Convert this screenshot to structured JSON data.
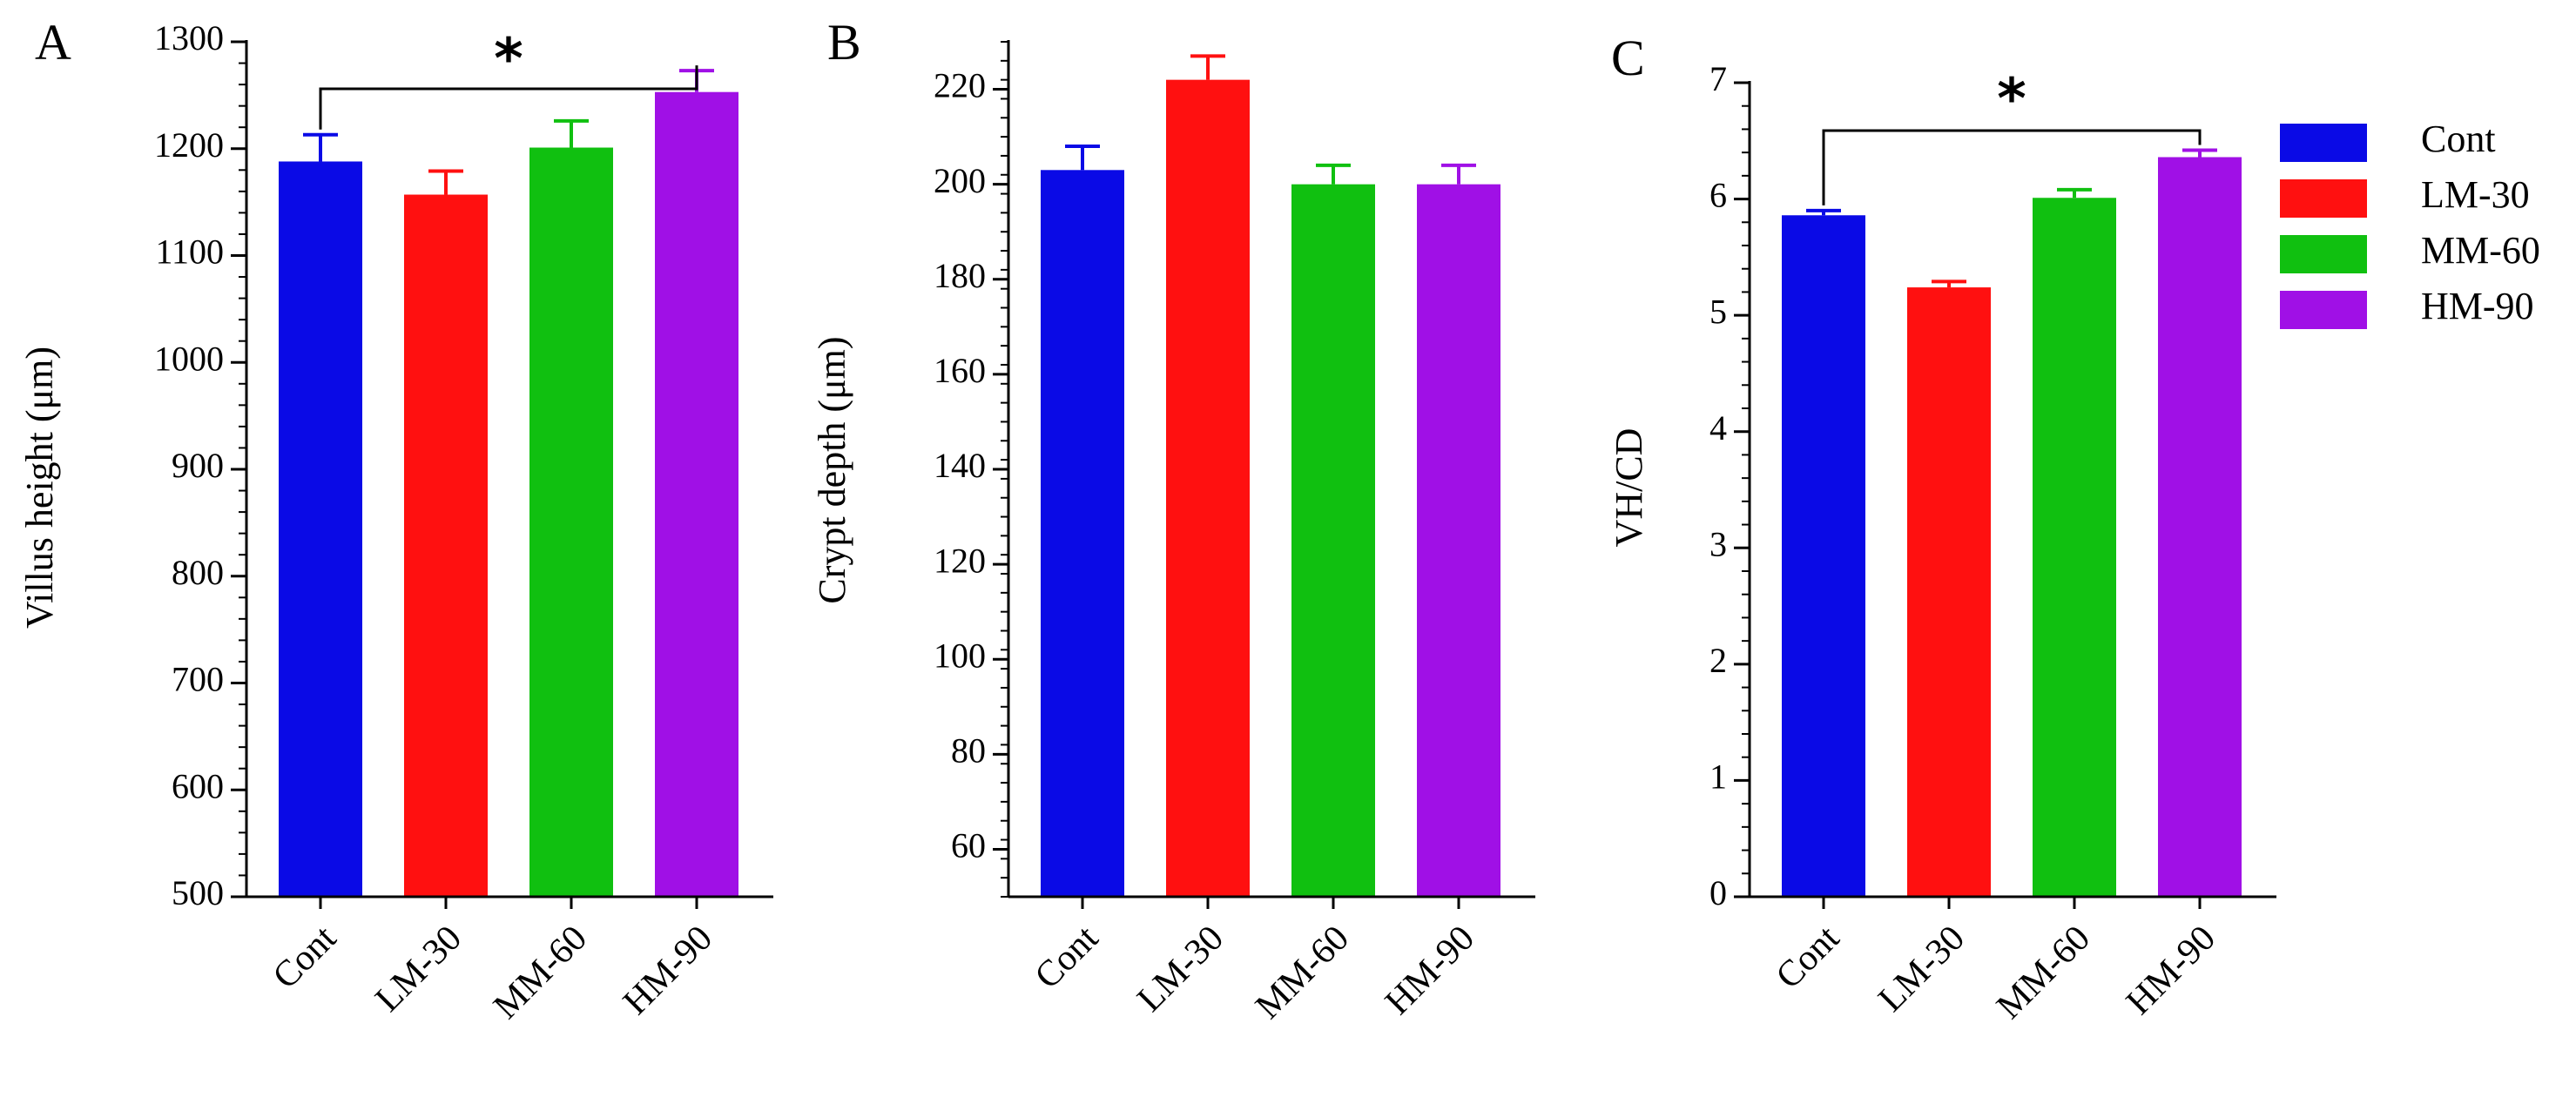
{
  "chart_data": [
    {
      "type": "bar",
      "panel": "A",
      "categories": [
        "Cont",
        "LM-30",
        "MM-60",
        "HM-90"
      ],
      "values": [
        1188,
        1157,
        1201,
        1253
      ],
      "errors": [
        25,
        22,
        25,
        20
      ],
      "ylabel": "Villus height (μm)",
      "ylim": [
        500,
        1300
      ],
      "yticks": [
        500,
        600,
        700,
        800,
        900,
        1000,
        1100,
        1200,
        1300
      ],
      "significance": {
        "from": "Cont",
        "to": "HM-90",
        "label": "*"
      }
    },
    {
      "type": "bar",
      "panel": "B",
      "categories": [
        "Cont",
        "LM-30",
        "MM-60",
        "HM-90"
      ],
      "values": [
        203,
        222,
        200,
        200
      ],
      "errors": [
        5,
        5,
        4,
        4
      ],
      "ylabel": "Crypt depth (μm)",
      "ylim": [
        50,
        230
      ],
      "yticks": [
        60,
        80,
        100,
        120,
        140,
        160,
        180,
        200,
        220
      ]
    },
    {
      "type": "bar",
      "panel": "C",
      "categories": [
        "Cont",
        "LM-30",
        "MM-60",
        "HM-90"
      ],
      "values": [
        5.86,
        5.24,
        6.01,
        6.36
      ],
      "errors": [
        0.04,
        0.05,
        0.07,
        0.06
      ],
      "ylabel": "VH/CD",
      "ylim": [
        0,
        7
      ],
      "yticks": [
        0,
        1,
        2,
        3,
        4,
        5,
        6,
        7
      ],
      "significance": {
        "from": "Cont",
        "to": "HM-90",
        "label": "*"
      }
    }
  ],
  "colors": {
    "Cont": "#0a0ae6",
    "LM-30": "#ff1010",
    "MM-60": "#10c010",
    "HM-90": "#a010e6"
  },
  "legend": [
    "Cont",
    "LM-30",
    "MM-60",
    "HM-90"
  ]
}
